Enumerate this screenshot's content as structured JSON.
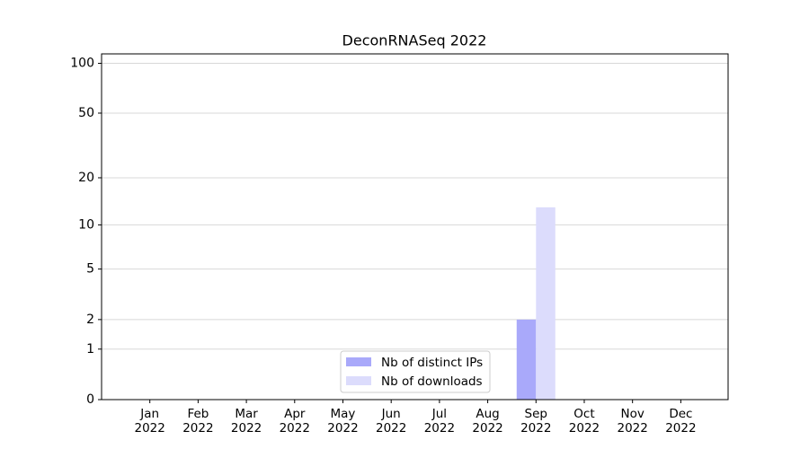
{
  "chart_data": {
    "type": "bar",
    "title": "DeconRNASeq 2022",
    "categories": [
      "Jan\n2022",
      "Feb\n2022",
      "Mar\n2022",
      "Apr\n2022",
      "May\n2022",
      "Jun\n2022",
      "Jul\n2022",
      "Aug\n2022",
      "Sep\n2022",
      "Oct\n2022",
      "Nov\n2022",
      "Dec\n2022"
    ],
    "series": [
      {
        "name": "Nb of distinct IPs",
        "color": "#a9a9fa",
        "values": [
          0,
          0,
          0,
          0,
          0,
          0,
          0,
          0,
          2,
          0,
          0,
          0
        ]
      },
      {
        "name": "Nb of downloads",
        "color": "#dcdcfc",
        "values": [
          0,
          0,
          0,
          0,
          0,
          0,
          0,
          0,
          13,
          0,
          0,
          0
        ]
      }
    ],
    "yscale": "log1p",
    "ylim": [
      0,
      114
    ],
    "yticks": [
      0,
      1,
      2,
      5,
      10,
      20,
      50,
      100
    ],
    "grid": true,
    "legend": "lower center"
  }
}
